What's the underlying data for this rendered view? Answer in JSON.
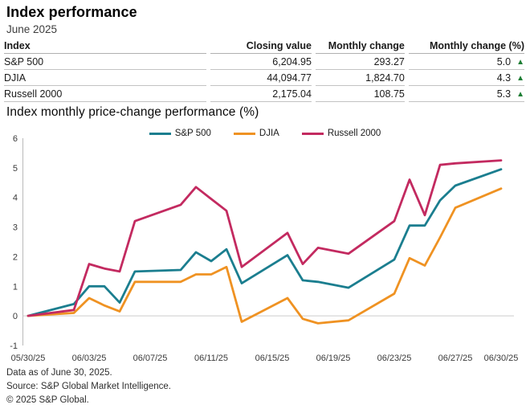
{
  "header": {
    "title": "Index performance",
    "subtitle": "June 2025"
  },
  "table": {
    "headers": [
      "Index",
      "Closing value",
      "Monthly change",
      "Monthly change (%)"
    ],
    "up_triangle": "▲",
    "rows": [
      {
        "index": "S&P 500",
        "closing_value": "6,204.95",
        "monthly_change": "293.27",
        "monthly_change_pct": "5.0",
        "direction": "up"
      },
      {
        "index": "DJIA",
        "closing_value": "44,094.77",
        "monthly_change": "1,824.70",
        "monthly_change_pct": "4.3",
        "direction": "up"
      },
      {
        "index": "Russell 2000",
        "closing_value": "2,175.04",
        "monthly_change": "108.75",
        "monthly_change_pct": "5.3",
        "direction": "up"
      }
    ]
  },
  "chart": {
    "title": "Index monthly price-change performance (%)"
  },
  "chart_data": {
    "type": "line",
    "title": "Index monthly price-change performance (%)",
    "x": [
      "05/30/25",
      "06/02/25",
      "06/03/25",
      "06/04/25",
      "06/05/25",
      "06/06/25",
      "06/09/25",
      "06/10/25",
      "06/11/25",
      "06/12/25",
      "06/13/25",
      "06/16/25",
      "06/17/25",
      "06/18/25",
      "06/20/25",
      "06/23/25",
      "06/24/25",
      "06/25/25",
      "06/26/25",
      "06/27/25",
      "06/30/25"
    ],
    "series": [
      {
        "name": "S&P 500",
        "color": "#1b7e8f",
        "values": [
          0,
          0.4,
          1.0,
          1.0,
          0.45,
          1.5,
          1.55,
          2.15,
          1.85,
          2.25,
          1.1,
          2.05,
          1.2,
          1.15,
          0.95,
          1.9,
          3.05,
          3.05,
          3.9,
          4.4,
          4.95
        ]
      },
      {
        "name": "DJIA",
        "color": "#ef9222",
        "values": [
          0,
          0.1,
          0.6,
          0.35,
          0.15,
          1.15,
          1.15,
          1.4,
          1.4,
          1.65,
          -0.2,
          0.6,
          -0.1,
          -0.25,
          -0.15,
          0.75,
          1.95,
          1.7,
          2.65,
          3.65,
          4.3
        ]
      },
      {
        "name": "Russell 2000",
        "color": "#c32a60",
        "values": [
          0,
          0.2,
          1.75,
          1.6,
          1.5,
          3.2,
          3.75,
          4.35,
          3.95,
          3.55,
          1.65,
          2.8,
          1.75,
          2.3,
          2.1,
          3.2,
          4.6,
          3.4,
          5.1,
          5.15,
          5.25
        ]
      }
    ],
    "ylim": [
      -1,
      6
    ],
    "yticks": [
      6,
      5,
      4,
      3,
      2,
      1,
      0,
      -1
    ],
    "xtick_labels": [
      "05/30/25",
      "06/03/25",
      "06/07/25",
      "06/11/25",
      "06/15/25",
      "06/19/25",
      "06/23/25",
      "06/27/25",
      "06/30/25"
    ],
    "legend_position": "top-center",
    "grid": "zero-line-only",
    "xlabel": "",
    "ylabel": ""
  },
  "footer": {
    "line1": "Data as of June 30, 2025.",
    "line2": "Source: S&P Global Market Intelligence.",
    "line3": "© 2025 S&P Global."
  },
  "colors": {
    "up_green": "#1e7e34",
    "axis_gray": "#b9b9b9",
    "zero_line_gray": "#cccccc",
    "tick_text": "#3a3a3a"
  }
}
